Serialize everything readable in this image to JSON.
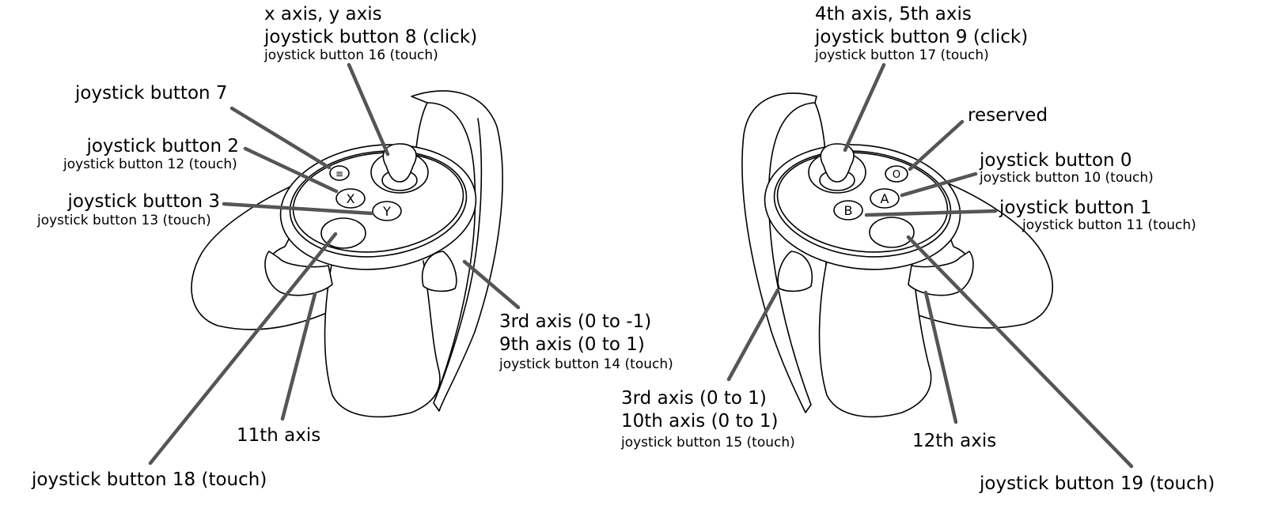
{
  "left": {
    "stick": [
      "x axis, y axis",
      "joystick button 8 (click)",
      "joystick button 16 (touch)"
    ],
    "menu": "joystick button 7",
    "x_button": [
      "joystick button 2",
      "joystick button 12 (touch)"
    ],
    "y_button": [
      "joystick button 3",
      "joystick button 13 (touch)"
    ],
    "trigger": [
      "3rd axis (0 to -1)",
      "9th axis (0 to 1)",
      "joystick button 14 (touch)"
    ],
    "grip": "11th axis",
    "thumbrest": "joystick button 18 (touch)"
  },
  "right": {
    "stick": [
      "4th axis, 5th axis",
      "joystick button 9 (click)",
      "joystick button 17 (touch)"
    ],
    "reserved": "reserved",
    "a_button": [
      "joystick button 0",
      "joystick button 10 (touch)"
    ],
    "b_button": [
      "joystick button 1",
      "joystick button 11 (touch)"
    ],
    "trigger": [
      "3rd axis (0 to 1)",
      "10th axis (0 to 1)",
      "joystick button 15 (touch)"
    ],
    "grip": "12th axis",
    "thumbrest": "joystick button 19 (touch)"
  },
  "button_glyphs": {
    "menu": "≡",
    "x": "X",
    "y": "Y",
    "oculus": "O",
    "a": "A",
    "b": "B"
  }
}
